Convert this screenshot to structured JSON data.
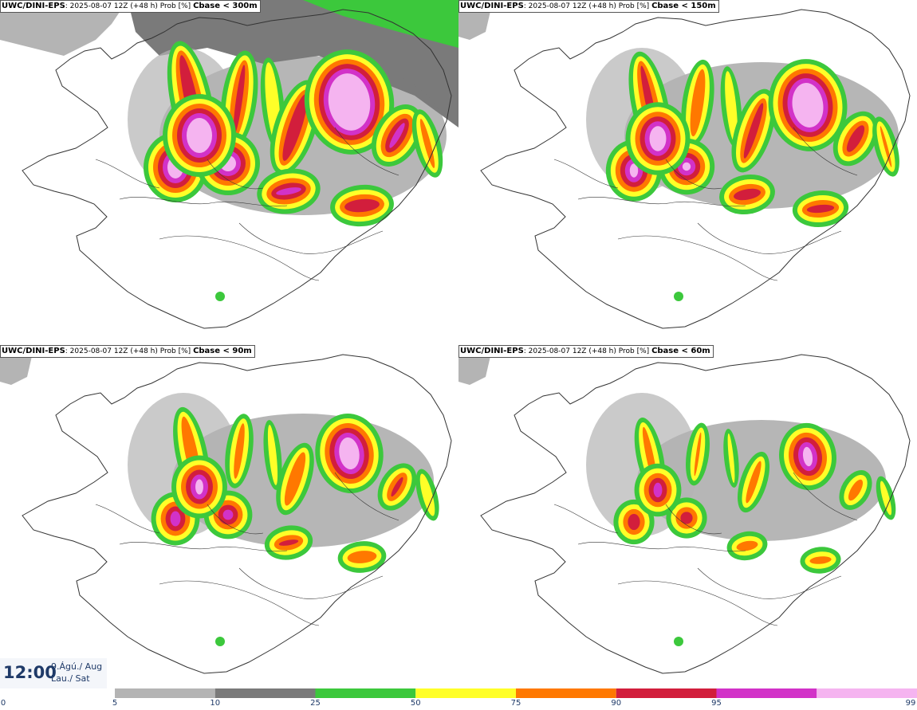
{
  "panels": [
    {
      "source": "UWC/DINI-EPS",
      "run": "2025-08-07 12Z (+48 h) Prob [%]",
      "variable": "Cbase < 300m",
      "level": 0
    },
    {
      "source": "UWC/DINI-EPS",
      "run": "2025-08-07 12Z (+48 h) Prob [%]",
      "variable": "Cbase < 150m",
      "level": 1
    },
    {
      "source": "UWC/DINI-EPS",
      "run": "2025-08-07 12Z (+48 h) Prob [%]",
      "variable": "Cbase < 90m",
      "level": 2
    },
    {
      "source": "UWC/DINI-EPS",
      "run": "2025-08-07 12Z (+48 h) Prob [%]",
      "variable": "Cbase < 60m",
      "level": 3
    }
  ],
  "time": {
    "clock": "12:00",
    "date_line": "9.Ágú./ Aug",
    "day_line": "Lau./ Sat"
  },
  "colorbar": {
    "ticks": [
      "0",
      "5",
      "10",
      "25",
      "50",
      "75",
      "90",
      "95",
      "99"
    ],
    "colors": [
      "#b4b4b4",
      "#7a7a7a",
      "#3cc83c",
      "#ffff28",
      "#ff7800",
      "#d21e3c",
      "#d232c8",
      "#f5b4f0"
    ]
  },
  "legend_colors": {
    "light_gray": "#b4b4b4",
    "dark_gray": "#7a7a7a",
    "green": "#3cc83c",
    "yellow": "#ffff28",
    "orange": "#ff7800",
    "red": "#d21e3c",
    "magenta": "#d232c8",
    "pink": "#f5b4f0"
  }
}
